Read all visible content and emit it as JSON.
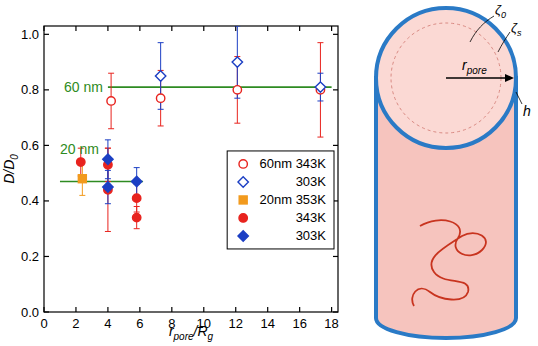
{
  "chart_data": {
    "type": "scatter",
    "x_label": [
      {
        "text": "r"
      },
      {
        "text": "pore",
        "sub": true
      },
      {
        "text": "/R"
      },
      {
        "text": "g",
        "sub": true
      }
    ],
    "y_label": [
      {
        "text": "D"
      },
      {
        "text": "/D"
      },
      {
        "text": "0",
        "sub": true
      }
    ],
    "xlim": [
      0,
      18.4
    ],
    "ylim": [
      0,
      1.03
    ],
    "xticks": [
      0,
      2,
      4,
      6,
      8,
      10,
      12,
      14,
      16,
      18
    ],
    "yticks": [
      {
        "value": 0,
        "label": "0.0"
      },
      0.2,
      0.4,
      0.6,
      0.8,
      {
        "value": 1,
        "label": "1.0"
      }
    ],
    "grid": false,
    "legend": "right",
    "series": [
      {
        "name": "60nm 343K",
        "color": "#e8231e",
        "marker": "open-circle",
        "x": [
          4.2,
          7.3,
          12.1,
          17.3
        ],
        "values": [
          0.76,
          0.77,
          0.8,
          0.8
        ],
        "errors": [
          0.1,
          0.1,
          0.12,
          0.17
        ]
      },
      {
        "name": "303K",
        "color": "#1c3fc4",
        "marker": "open-diamond",
        "x": [
          7.3,
          12.1,
          17.3
        ],
        "values": [
          0.85,
          0.9,
          0.81
        ],
        "errors": [
          0.12,
          0.13,
          0.05
        ]
      },
      {
        "name": "20nm 353K",
        "color": "#f29a1d",
        "marker": "square",
        "x": [
          2.4
        ],
        "values": [
          0.48
        ],
        "errors": [
          0.06
        ]
      },
      {
        "name": "343K",
        "color": "#e8231e",
        "marker": "circle",
        "x": [
          2.3,
          4.0,
          4.0,
          5.8,
          5.8
        ],
        "values": [
          0.54,
          0.53,
          0.44,
          0.41,
          0.34
        ],
        "errors": [
          0.05,
          0.06,
          0.15,
          0.05,
          0.04
        ]
      },
      {
        "name": "303K",
        "color": "#1c3fc4",
        "marker": "diamond",
        "x": [
          4.0,
          4.0,
          5.8
        ],
        "values": [
          0.55,
          0.45,
          0.47
        ],
        "errors": [
          0.07,
          0.06,
          0.05
        ]
      }
    ],
    "reference_lines": [
      {
        "label": "60 nm",
        "value": 0.81,
        "x": [
          4.0,
          18.0
        ],
        "color": "#2e8b22"
      },
      {
        "label": "20 nm",
        "value": 0.47,
        "x": [
          1.0,
          6.2
        ],
        "color": "#2e8b22"
      }
    ],
    "diagram": {
      "core_label": [
        {
          "text": "ζ"
        },
        {
          "text": "0",
          "sub": true
        }
      ],
      "surface_label": [
        {
          "text": "ζ"
        },
        {
          "text": "s",
          "sub": true
        }
      ],
      "radius_label": [
        {
          "text": "r"
        },
        {
          "text": "pore",
          "sub": true
        }
      ],
      "wall_label": [
        {
          "text": "h"
        }
      ]
    }
  }
}
